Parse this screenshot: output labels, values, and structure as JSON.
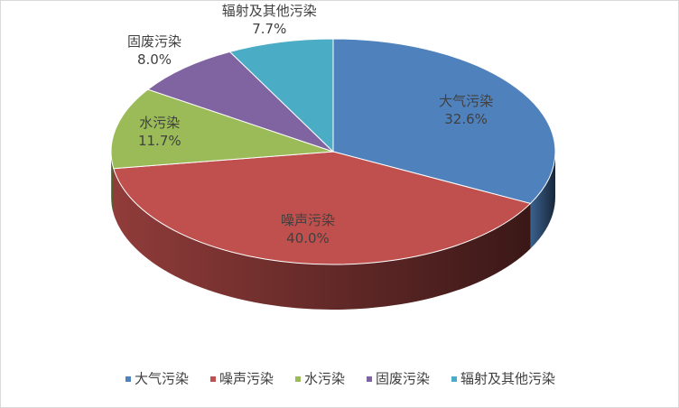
{
  "chart_data": {
    "type": "pie3d",
    "categories": [
      "大气污染",
      "噪声污染",
      "水污染",
      "固废污染",
      "辐射及其他污染"
    ],
    "values": [
      32.6,
      40.0,
      11.7,
      8.0,
      7.7
    ],
    "value_labels": [
      "32.6%",
      "40.0%",
      "11.7%",
      "8.0%",
      "7.7%"
    ],
    "colors": [
      "#4f81bd",
      "#c0504d",
      "#9bbb59",
      "#8064a2",
      "#4bacc6"
    ],
    "legend": "bottom"
  }
}
